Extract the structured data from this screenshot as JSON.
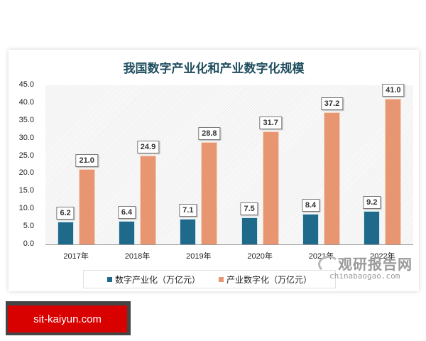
{
  "chart_data": {
    "type": "bar",
    "title": "我国数字产业化和产业数字化规模",
    "categories": [
      "2017年",
      "2018年",
      "2019年",
      "2020年",
      "2021年",
      "2022年"
    ],
    "series": [
      {
        "name": "数字产业化（万亿元）",
        "color": "#1f6a8a",
        "values": [
          6.2,
          6.4,
          7.1,
          7.5,
          8.4,
          9.2
        ],
        "labels": [
          "6.2",
          "6.4",
          "7.1",
          "7.5",
          "8.4",
          "9.2"
        ]
      },
      {
        "name": "产业数字化（万亿元）",
        "color": "#e89572",
        "values": [
          21.0,
          24.9,
          28.8,
          31.7,
          37.2,
          41.0
        ],
        "labels": [
          "21.0",
          "24.9",
          "28.8",
          "31.7",
          "37.2",
          "41.0"
        ]
      }
    ],
    "xlabel": "",
    "ylabel": "",
    "ylim": [
      0,
      45
    ],
    "yticks": [
      "45.0",
      "40.0",
      "35.0",
      "30.0",
      "25.0",
      "20.0",
      "15.0",
      "10.0",
      "5.0",
      "0.0"
    ],
    "grid": false,
    "legend_position": "bottom"
  },
  "watermark": {
    "cn": "观研报告网",
    "en": "chinabaogao.com"
  },
  "badge": {
    "text": "sit-kaiyun.com"
  }
}
